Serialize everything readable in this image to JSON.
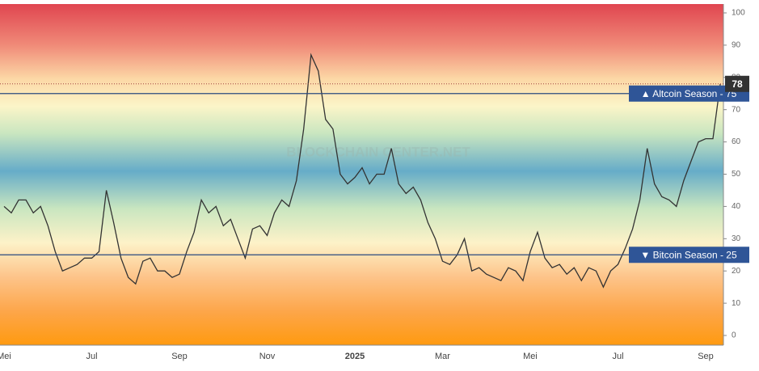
{
  "chart_data": {
    "type": "line",
    "watermark": "BLOCKCHAIN CENTER.NET",
    "categories": [
      "Mei",
      null,
      null,
      null,
      null,
      null,
      null,
      null,
      null,
      null,
      null,
      null,
      "Jul",
      null,
      null,
      null,
      null,
      null,
      null,
      null,
      null,
      null,
      null,
      null,
      "Sep",
      null,
      null,
      null,
      null,
      null,
      null,
      null,
      null,
      null,
      null,
      null,
      "Nov",
      null,
      null,
      null,
      null,
      null,
      null,
      null,
      null,
      null,
      null,
      null,
      "2025",
      null,
      null,
      null,
      null,
      null,
      null,
      null,
      null,
      null,
      null,
      null,
      "Mar",
      null,
      null,
      null,
      null,
      null,
      null,
      null,
      null,
      null,
      null,
      null,
      "Mei",
      null,
      null,
      null,
      null,
      null,
      null,
      null,
      null,
      null,
      null,
      null,
      "Jul",
      null,
      null,
      null,
      null,
      null,
      null,
      null,
      null,
      null,
      null,
      null,
      "Sep",
      null,
      null
    ],
    "values": [
      40,
      38,
      42,
      42,
      38,
      40,
      34,
      26,
      20,
      21,
      22,
      24,
      24,
      26,
      45,
      35,
      24,
      18,
      16,
      23,
      24,
      20,
      20,
      18,
      19,
      26,
      32,
      42,
      38,
      40,
      34,
      36,
      30,
      24,
      33,
      34,
      31,
      38,
      42,
      40,
      48,
      64,
      87,
      82,
      67,
      64,
      50,
      47,
      49,
      52,
      47,
      50,
      50,
      58,
      47,
      44,
      46,
      42,
      35,
      30,
      23,
      22,
      25,
      30,
      20,
      21,
      19,
      18,
      17,
      21,
      20,
      17,
      26,
      32,
      24,
      21,
      22,
      19,
      21,
      17,
      21,
      20,
      15,
      20,
      22,
      27,
      33,
      42,
      58,
      47,
      43,
      42,
      40,
      48,
      54,
      60,
      61,
      61,
      78
    ],
    "color": "#333333",
    "ylim": [
      -3,
      102.75
    ],
    "yticks": [
      0,
      10,
      20,
      30,
      40,
      50,
      60,
      70,
      80,
      90,
      100
    ],
    "annotations": [
      {
        "label": "▲ Altcoin Season - 75",
        "value": 75
      },
      {
        "label": "▼ Bitcoin Season - 25",
        "value": 25
      }
    ]
  }
}
